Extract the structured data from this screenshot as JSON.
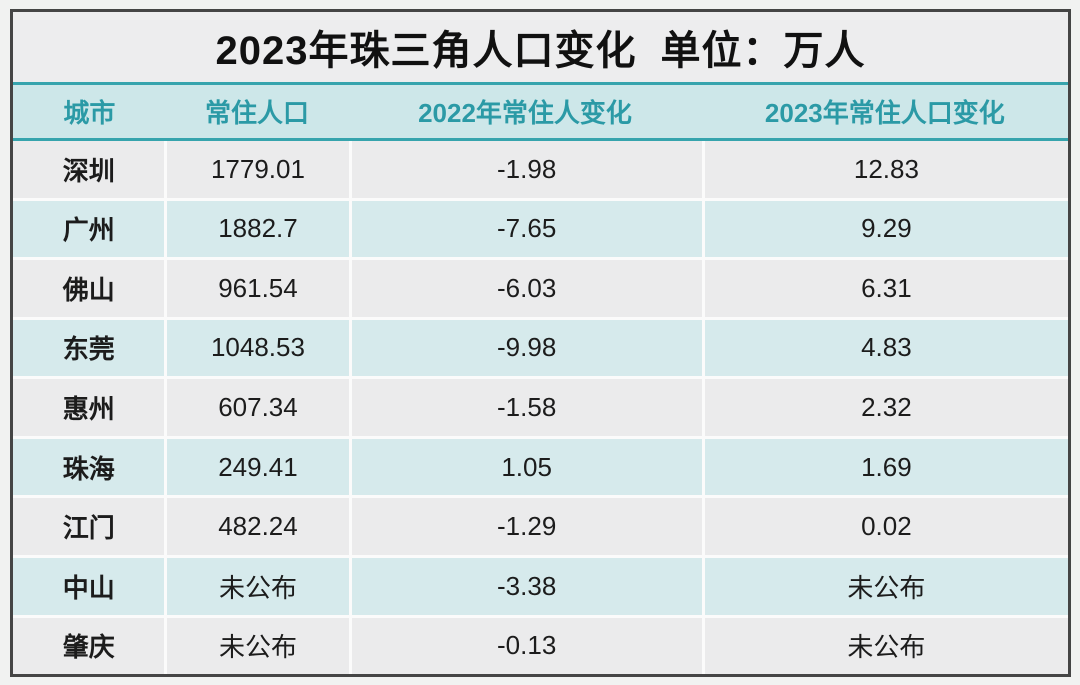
{
  "title": "2023年珠三角人口变化",
  "unit_label": "单位：万人",
  "colors": {
    "accent_teal": "#36a4ad",
    "header_bg": "#cde7e9",
    "header_text": "#2b9aa6",
    "row_grey_bg": "#ebebec",
    "row_teal_bg": "#d6eaec",
    "title_bg": "#ededee",
    "frame_border": "#454545",
    "page_bg": "#f1f2f1",
    "separator": "#fbfbfb",
    "body_text": "#1c1c1c"
  },
  "chart_data": {
    "type": "table",
    "title": "2023年珠三角人口变化",
    "unit": "单位：万人",
    "columns": [
      "城市",
      "常住人口",
      "2022年常住人变化",
      "2023年常住人口变化"
    ],
    "rows": [
      {
        "city": "深圳",
        "resident_population": "1779.01",
        "change_2022": "-1.98",
        "change_2023": "12.83"
      },
      {
        "city": "广州",
        "resident_population": "1882.7",
        "change_2022": "-7.65",
        "change_2023": "9.29"
      },
      {
        "city": "佛山",
        "resident_population": "961.54",
        "change_2022": "-6.03",
        "change_2023": "6.31"
      },
      {
        "city": "东莞",
        "resident_population": "1048.53",
        "change_2022": "-9.98",
        "change_2023": "4.83"
      },
      {
        "city": "惠州",
        "resident_population": "607.34",
        "change_2022": "-1.58",
        "change_2023": "2.32"
      },
      {
        "city": "珠海",
        "resident_population": "249.41",
        "change_2022": "1.05",
        "change_2023": "1.69"
      },
      {
        "city": "江门",
        "resident_population": "482.24",
        "change_2022": "-1.29",
        "change_2023": "0.02"
      },
      {
        "city": "中山",
        "resident_population": "未公布",
        "change_2022": "-3.38",
        "change_2023": "未公布"
      },
      {
        "city": "肇庆",
        "resident_population": "未公布",
        "change_2022": "-0.13",
        "change_2023": "未公布"
      }
    ]
  }
}
